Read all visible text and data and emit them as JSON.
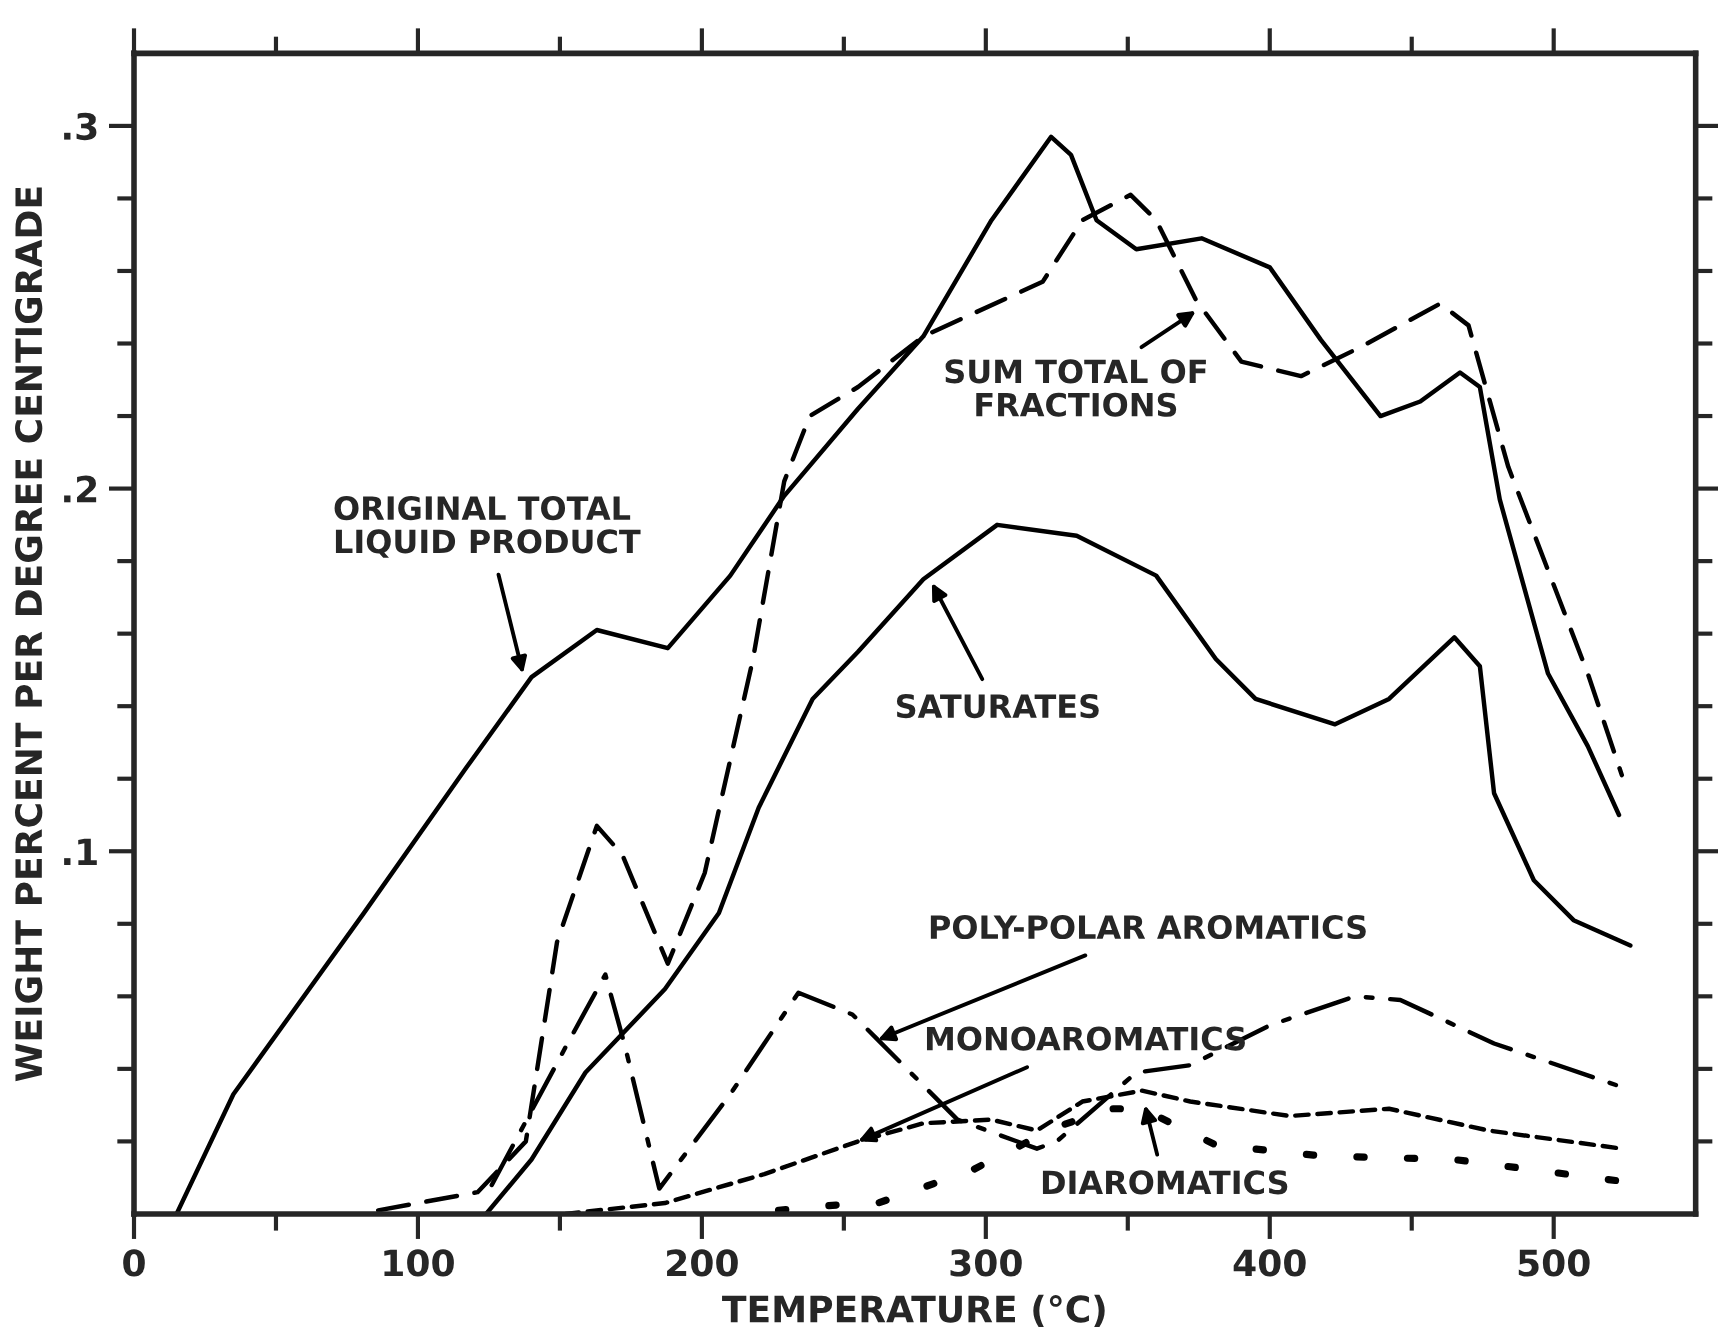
{
  "chart_data": {
    "type": "line",
    "xlabel": "TEMPERATURE (°C)",
    "ylabel": "WEIGHT PERCENT PER DEGREE CENTIGRADE",
    "xlim": [
      0,
      550
    ],
    "ylim": [
      0,
      0.32
    ],
    "xticks": [
      0,
      {
        "value": 50,
        "label": null
      },
      100,
      {
        "value": 150,
        "label": null
      },
      200,
      {
        "value": 250,
        "label": null
      },
      300,
      {
        "value": 350,
        "label": null
      },
      400,
      {
        "value": 450,
        "label": null
      },
      500
    ],
    "yticks": [
      {
        "value": 0.02,
        "label": null
      },
      {
        "value": 0.04,
        "label": null
      },
      {
        "value": 0.06,
        "label": null
      },
      {
        "value": 0.08,
        "label": null
      },
      {
        "value": 0.1,
        "label": ".1"
      },
      {
        "value": 0.12,
        "label": null
      },
      {
        "value": 0.14,
        "label": null
      },
      {
        "value": 0.16,
        "label": null
      },
      {
        "value": 0.18,
        "label": null
      },
      {
        "value": 0.2,
        "label": ".2"
      },
      {
        "value": 0.22,
        "label": null
      },
      {
        "value": 0.24,
        "label": null
      },
      {
        "value": 0.26,
        "label": null
      },
      {
        "value": 0.28,
        "label": null
      },
      {
        "value": 0.3,
        "label": ".3"
      }
    ],
    "grid": false,
    "legend": false,
    "series": [
      {
        "color": "#000000",
        "line_style": "solid",
        "x": [
          15,
          35,
          81,
          117,
          140,
          163,
          188,
          210,
          229,
          255,
          278,
          302,
          323,
          330,
          339,
          353,
          376,
          400,
          418,
          439,
          453,
          467,
          474,
          481,
          498,
          512,
          523
        ],
        "values": [
          0,
          0.033,
          0.083,
          0.123,
          0.148,
          0.161,
          0.156,
          0.176,
          0.198,
          0.222,
          0.242,
          0.274,
          0.297,
          0.292,
          0.274,
          0.266,
          0.269,
          0.261,
          0.241,
          0.22,
          0.224,
          0.232,
          0.228,
          0.197,
          0.149,
          0.129,
          0.11
        ]
      },
      {
        "color": "#000000",
        "line_style": "dashed",
        "x": [
          86,
          121,
          138,
          149,
          163,
          172,
          188,
          201,
          218,
          229,
          238,
          255,
          278,
          320,
          334,
          351,
          360,
          374,
          390,
          411,
          432,
          460,
          470,
          484,
          512,
          524
        ],
        "values": [
          0.001,
          0.006,
          0.02,
          0.075,
          0.107,
          0.099,
          0.069,
          0.094,
          0.153,
          0.202,
          0.22,
          0.228,
          0.242,
          0.257,
          0.274,
          0.281,
          0.274,
          0.252,
          0.235,
          0.231,
          0.239,
          0.251,
          0.245,
          0.206,
          0.149,
          0.121
        ]
      },
      {
        "color": "#000000",
        "line_style": "solid",
        "x": [
          124,
          140,
          159,
          187,
          206,
          220,
          239,
          255,
          278,
          304,
          332,
          360,
          381,
          395,
          423,
          442,
          465,
          474,
          479,
          493,
          507,
          527
        ],
        "values": [
          0,
          0.015,
          0.039,
          0.062,
          0.083,
          0.112,
          0.142,
          0.155,
          0.175,
          0.19,
          0.187,
          0.176,
          0.153,
          0.142,
          0.135,
          0.142,
          0.159,
          0.151,
          0.116,
          0.092,
          0.081,
          0.074
        ]
      },
      {
        "color": "#000000",
        "line_style": "dashdot",
        "x": [
          126,
          152,
          166,
          173,
          185,
          210,
          234,
          253,
          262,
          290,
          318,
          325,
          353,
          372,
          400,
          430,
          446,
          479,
          524
        ],
        "values": [
          0.008,
          0.046,
          0.066,
          0.046,
          0.007,
          0.033,
          0.061,
          0.055,
          0.048,
          0.026,
          0.018,
          0.02,
          0.039,
          0.041,
          0.052,
          0.06,
          0.059,
          0.047,
          0.035
        ]
      },
      {
        "color": "#000000",
        "line_style": "short dashed",
        "x": [
          152,
          187,
          222,
          255,
          278,
          302,
          318,
          334,
          355,
          372,
          407,
          442,
          477,
          524
        ],
        "values": [
          0,
          0.003,
          0.011,
          0.02,
          0.025,
          0.026,
          0.023,
          0.031,
          0.034,
          0.031,
          0.027,
          0.029,
          0.023,
          0.018
        ]
      },
      {
        "color": "#000000",
        "line_style": "dotted",
        "x": [
          227,
          255,
          262,
          295,
          325,
          344,
          355,
          381,
          418,
          465,
          524
        ],
        "values": [
          0.001,
          0.003,
          0.003,
          0.012,
          0.024,
          0.029,
          0.029,
          0.019,
          0.016,
          0.015,
          0.009
        ]
      }
    ],
    "annotations": [
      {
        "text": "ORIGINAL TOTAL\nLIQUID PRODUCT",
        "x": 137,
        "y": 0.149
      },
      {
        "text": "SUM TOTAL OF\nFRACTIONS",
        "x": 374,
        "y": 0.249
      },
      {
        "text": "SATURATES",
        "x": 281,
        "y": 0.174
      },
      {
        "text": "POLY-POLAR AROMATICS",
        "x": 262,
        "y": 0.048
      },
      {
        "text": "MONOAROMATICS",
        "x": 255,
        "y": 0.02
      },
      {
        "text": "DIAROMATICS",
        "x": 356,
        "y": 0.03
      }
    ]
  }
}
